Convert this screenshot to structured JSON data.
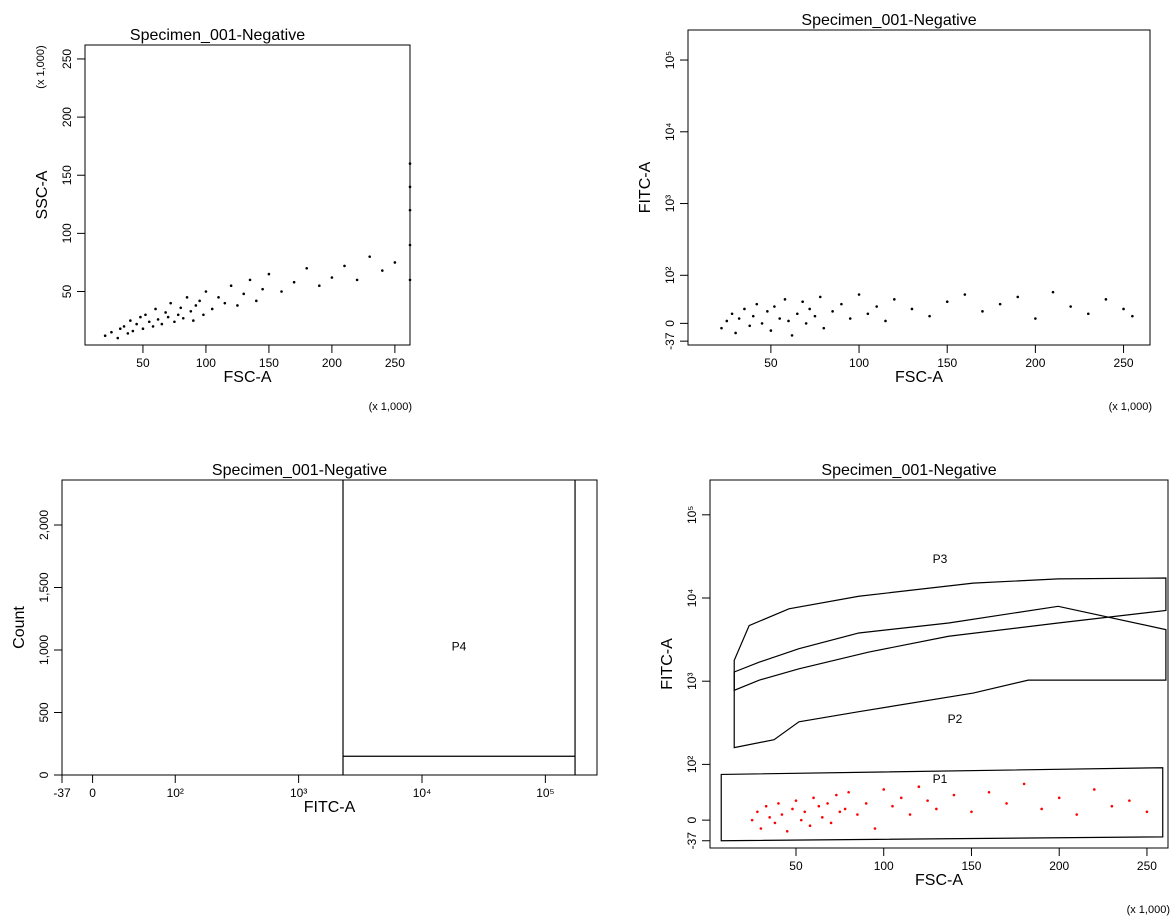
{
  "chart_data": [
    {
      "type": "scatter",
      "title": "Specimen_001-Negative",
      "xlabel": "FSC-A",
      "ylabel": "SSC-A",
      "xunit": "(x 1,000)",
      "yunit": "(x 1,000)",
      "xscale": "linear",
      "yscale": "linear",
      "xlim": [
        4,
        262
      ],
      "ylim": [
        4,
        262
      ],
      "xticks": [
        50,
        100,
        150,
        200,
        250
      ],
      "yticks": [
        50,
        100,
        150,
        200,
        250
      ],
      "color": "#000000",
      "x": [
        20,
        25,
        30,
        32,
        35,
        38,
        40,
        42,
        45,
        48,
        50,
        52,
        55,
        58,
        60,
        62,
        65,
        68,
        70,
        72,
        75,
        78,
        80,
        82,
        85,
        88,
        90,
        92,
        95,
        98,
        100,
        105,
        110,
        115,
        120,
        125,
        130,
        135,
        140,
        145,
        150,
        160,
        170,
        180,
        190,
        200,
        210,
        220,
        230,
        240,
        250,
        262,
        262,
        262,
        262,
        262
      ],
      "y": [
        12,
        15,
        10,
        18,
        20,
        14,
        25,
        16,
        22,
        28,
        18,
        30,
        24,
        20,
        35,
        26,
        22,
        32,
        28,
        40,
        24,
        30,
        36,
        27,
        45,
        33,
        25,
        38,
        42,
        30,
        50,
        35,
        45,
        40,
        55,
        38,
        48,
        60,
        42,
        52,
        65,
        50,
        58,
        70,
        55,
        62,
        72,
        60,
        80,
        68,
        75,
        60,
        90,
        120,
        140,
        160
      ]
    },
    {
      "type": "scatter",
      "title": "Specimen_001-Negative",
      "xlabel": "FSC-A",
      "ylabel": "FITC-A",
      "xunit": "(x 1,000)",
      "xscale": "linear",
      "yscale": "biexponential",
      "xlim": [
        3,
        265
      ],
      "ylim": [
        -45,
        262144
      ],
      "xticks": [
        50,
        100,
        150,
        200,
        250
      ],
      "yticks": [
        -37,
        0,
        {
          "value": 100,
          "label": "10²"
        },
        {
          "value": 1000,
          "label": "10³"
        },
        {
          "value": 10000,
          "label": "10⁴"
        },
        {
          "value": 100000,
          "label": "10⁵"
        }
      ],
      "color": "#000000",
      "x": [
        22,
        25,
        28,
        30,
        32,
        35,
        38,
        40,
        42,
        45,
        48,
        50,
        52,
        55,
        58,
        60,
        62,
        65,
        68,
        70,
        72,
        75,
        78,
        80,
        85,
        90,
        95,
        100,
        105,
        110,
        115,
        120,
        130,
        140,
        150,
        160,
        170,
        180,
        190,
        200,
        210,
        220,
        230,
        240,
        250,
        255
      ],
      "y": [
        -10,
        5,
        20,
        -20,
        10,
        30,
        -5,
        15,
        40,
        0,
        25,
        -15,
        35,
        10,
        50,
        5,
        -25,
        20,
        45,
        0,
        30,
        15,
        55,
        -10,
        25,
        40,
        10,
        60,
        20,
        35,
        5,
        50,
        30,
        15,
        45,
        60,
        25,
        40,
        55,
        10,
        65,
        35,
        20,
        50,
        30,
        15
      ]
    },
    {
      "type": "histogram",
      "title": "Specimen_001-Negative",
      "xlabel": "FITC-A",
      "ylabel": "Count",
      "xscale": "biexponential",
      "yscale": "linear",
      "xlim": [
        -37,
        262144
      ],
      "ylim": [
        0,
        2360
      ],
      "xticks": [
        -37,
        0,
        {
          "value": 100,
          "label": "10²"
        },
        {
          "value": 1000,
          "label": "10³"
        },
        {
          "value": 10000,
          "label": "10⁴"
        },
        {
          "value": 100000,
          "label": "10⁵"
        }
      ],
      "yticks": [
        0,
        500,
        {
          "value": 1000,
          "label": "1,000"
        },
        {
          "value": 1500,
          "label": "1,500"
        },
        {
          "value": 2000,
          "label": "2,000"
        }
      ],
      "gates": [
        {
          "name": "P4",
          "x": [
            2290,
            174000
          ],
          "y": [
            150
          ]
        }
      ]
    },
    {
      "type": "scatter",
      "title": "Specimen_001-Negative",
      "xlabel": "FSC-A",
      "ylabel": "FITC-A",
      "xunit": "(x 1,000)",
      "xscale": "linear",
      "yscale": "biexponential",
      "xlim": [
        1,
        262
      ],
      "ylim": [
        -50,
        262144
      ],
      "xticks": [
        50,
        100,
        150,
        200,
        250
      ],
      "yticks": [
        -37,
        0,
        {
          "value": 100,
          "label": "10²"
        },
        {
          "value": 1000,
          "label": "10³"
        },
        {
          "value": 10000,
          "label": "10⁴"
        },
        {
          "value": 100000,
          "label": "10⁵"
        }
      ],
      "color": "#ff0000",
      "x": [
        25,
        28,
        30,
        33,
        35,
        38,
        40,
        42,
        45,
        48,
        50,
        53,
        55,
        58,
        60,
        63,
        65,
        68,
        70,
        73,
        75,
        78,
        80,
        85,
        90,
        95,
        100,
        105,
        110,
        115,
        120,
        125,
        130,
        140,
        150,
        160,
        170,
        180,
        190,
        200,
        210,
        220,
        230,
        240,
        250
      ],
      "y": [
        0,
        15,
        -15,
        25,
        5,
        -5,
        30,
        10,
        -20,
        20,
        35,
        0,
        15,
        -10,
        40,
        25,
        5,
        30,
        -5,
        45,
        15,
        20,
        50,
        10,
        30,
        -15,
        55,
        25,
        40,
        10,
        60,
        35,
        20,
        45,
        15,
        50,
        30,
        65,
        20,
        40,
        10,
        55,
        25,
        35,
        15
      ],
      "gates": [
        {
          "name": "P3",
          "x": [
            14.8,
            14.8,
            23.3,
            46,
            85.8,
            151,
            199.4,
            260.8,
            260.8,
            199.4,
            137,
            91.5,
            51.7,
            29
          ],
          "y": [
            776,
            1778,
            4660,
            7420,
            10500,
            15100,
            17000,
            17400,
            7080,
            5010,
            3470,
            2240,
            1410,
            1030
          ]
        },
        {
          "name": "P2",
          "x": [
            14.8,
            14.8,
            29,
            51.7,
            85.8,
            137,
            199.4,
            260.8,
            260.8,
            182.4,
            151,
            85.8,
            51.7,
            37.5
          ],
          "y": [
            159,
            1290,
            1690,
            2460,
            3800,
            5010,
            7950,
            4170,
            1030,
            1030,
            720,
            430,
            325,
            198
          ]
        },
        {
          "name": "P1",
          "x": [
            7.4,
            259,
            259,
            7.4
          ],
          "y": [
            82,
            94,
            -30,
            -37
          ]
        }
      ]
    }
  ]
}
